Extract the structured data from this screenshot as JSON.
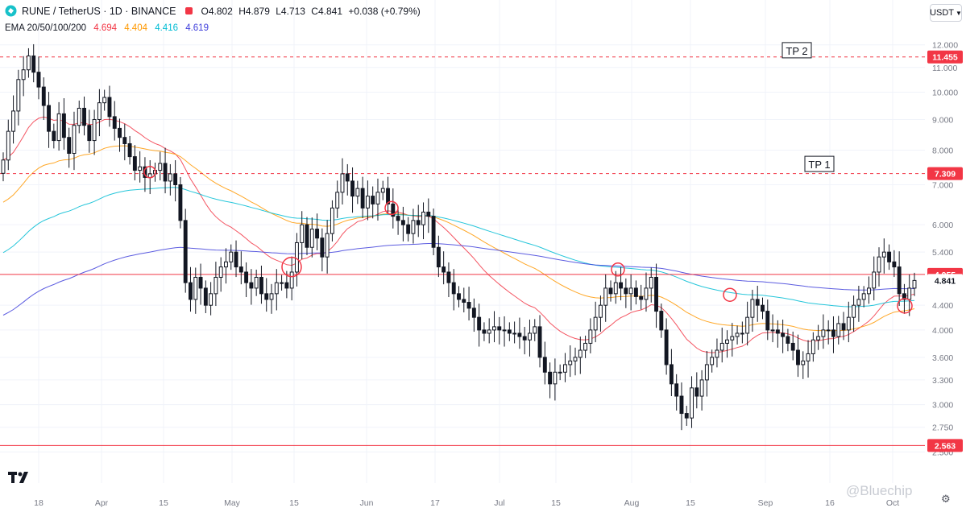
{
  "header": {
    "symbol": "RUNE / TetherUS · 1D · BINANCE",
    "open": "O4.802",
    "high": "H4.879",
    "low": "L4.713",
    "close": "C4.841",
    "change": "+0.038 (+0.79%)"
  },
  "ema_legend": {
    "label": "EMA 20/50/100/200",
    "values": [
      "4.694",
      "4.404",
      "4.416",
      "4.619"
    ],
    "colors": [
      "#f23645",
      "#ff9800",
      "#00bcd4",
      "#3f3fdb"
    ]
  },
  "currency_button": "USDT",
  "watermark": "@Bluechip",
  "chart_data": {
    "type": "candlestick",
    "title": "",
    "y_scale": "log",
    "ylim": [
      2.36,
      12.6
    ],
    "y_ticks": [
      "12.000",
      "11.000",
      "10.000",
      "9.000",
      "8.000",
      "7.000",
      "6.000",
      "5.400",
      "4.400",
      "4.000",
      "3.600",
      "3.300",
      "3.000",
      "2.750",
      "2.500"
    ],
    "x_ticks": [
      "18",
      "Apr",
      "15",
      "May",
      "15",
      "Jun",
      "17",
      "Jul",
      "15",
      "Aug",
      "15",
      "Sep",
      "16",
      "Oct"
    ],
    "price_labels": [
      {
        "text": "11.455",
        "value": 11.455,
        "color": "#f23645"
      },
      {
        "text": "7.309",
        "value": 7.309,
        "color": "#f23645"
      },
      {
        "text": "4.955",
        "value": 4.955,
        "color": "#f23645"
      },
      {
        "text": "4.841",
        "value": 4.841,
        "color": "#ffffff"
      },
      {
        "text": "2.563",
        "value": 2.563,
        "color": "#f23645"
      }
    ],
    "levels": [
      {
        "value": 11.455,
        "style": "dashed",
        "color": "#f23645",
        "note": "TP 2"
      },
      {
        "value": 7.309,
        "style": "dashed",
        "color": "#f23645",
        "note": "TP 1"
      },
      {
        "value": 4.955,
        "style": "solid",
        "color": "#f23645"
      },
      {
        "value": 2.563,
        "style": "solid",
        "color": "#f23645"
      }
    ],
    "annotations": [
      "TP 2",
      "TP 1"
    ],
    "closes": [
      7.7,
      8.6,
      9.3,
      10.5,
      10.9,
      11.5,
      10.8,
      10.2,
      9.5,
      8.6,
      8.3,
      9.2,
      8.4,
      7.9,
      8.8,
      9.4,
      8.8,
      8.3,
      9.0,
      9.6,
      9.8,
      9.1,
      8.7,
      8.4,
      8.2,
      7.8,
      7.4,
      7.5,
      7.2,
      7.3,
      7.4,
      7.6,
      7.1,
      7.3,
      7.0,
      6.1,
      4.8,
      4.5,
      4.9,
      4.7,
      4.4,
      4.6,
      4.9,
      5.1,
      5.2,
      5.4,
      5.1,
      5.0,
      4.8,
      4.7,
      4.9,
      4.6,
      4.5,
      4.6,
      4.8,
      4.8,
      4.7,
      5.0,
      5.6,
      6.0,
      5.5,
      5.9,
      5.7,
      5.3,
      5.8,
      6.4,
      6.8,
      7.3,
      7.1,
      6.7,
      6.9,
      6.4,
      6.7,
      6.5,
      6.8,
      6.9,
      6.5,
      6.2,
      6.1,
      6.0,
      5.8,
      6.1,
      6.0,
      6.3,
      6.2,
      5.5,
      5.1,
      5.0,
      4.8,
      4.6,
      4.5,
      4.45,
      4.35,
      4.2,
      4.0,
      3.95,
      4.0,
      4.05,
      4.0,
      4.0,
      3.95,
      3.95,
      3.9,
      3.85,
      3.95,
      4.05,
      3.6,
      3.4,
      3.25,
      3.4,
      3.4,
      3.5,
      3.55,
      3.6,
      3.7,
      3.8,
      4.0,
      4.2,
      4.4,
      4.7,
      4.6,
      4.8,
      4.7,
      4.6,
      4.7,
      4.55,
      4.5,
      4.7,
      4.9,
      4.3,
      4.0,
      3.5,
      3.25,
      3.1,
      2.9,
      2.85,
      3.2,
      3.1,
      3.3,
      3.5,
      3.6,
      3.7,
      3.8,
      3.85,
      3.9,
      3.95,
      3.95,
      4.2,
      4.5,
      4.4,
      4.3,
      4.0,
      4.0,
      3.95,
      3.9,
      3.8,
      3.7,
      3.5,
      3.55,
      3.65,
      3.85,
      3.9,
      4.0,
      4.0,
      3.9,
      4.1,
      4.0,
      4.2,
      4.4,
      4.5,
      4.6,
      4.7,
      5.0,
      5.3,
      5.4,
      5.2,
      5.1,
      4.6,
      4.5,
      4.7,
      4.841
    ]
  }
}
